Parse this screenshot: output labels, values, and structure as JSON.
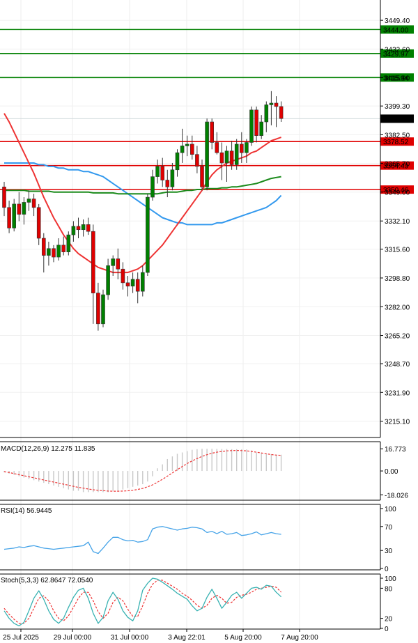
{
  "chart_data": [
    {
      "type": "candlestick",
      "panel": "price",
      "y_ticks": [
        "3449.40",
        "3432.60",
        "3415.90",
        "3399.30",
        "3382.50",
        "3365.70",
        "3349.00",
        "3332.10",
        "3315.60",
        "3298.80",
        "3282.00",
        "3265.20",
        "3248.70",
        "3231.90",
        "3215.10"
      ],
      "ylim": [
        3208,
        3458
      ],
      "x_ticks": [
        "25 Jul 2025",
        "29 Jul 00:00",
        "31 Jul 00:00",
        "3 Aug 22:01",
        "5 Aug 20:00",
        "7 Aug 20:00"
      ],
      "last_price": "3391.88",
      "horizontal_levels": [
        {
          "label": "3444.00",
          "value": 3444.0,
          "color": "#008000"
        },
        {
          "label": "3429.97",
          "value": 3429.97,
          "color": "#008000"
        },
        {
          "label": "3415.94",
          "value": 3415.94,
          "color": "#008000"
        },
        {
          "label": "3378.52",
          "value": 3378.52,
          "color": "#e00000"
        },
        {
          "label": "3364.49",
          "value": 3364.49,
          "color": "#e00000"
        },
        {
          "label": "3350.46",
          "value": 3350.46,
          "color": "#e00000"
        }
      ],
      "candles": [
        [
          3352,
          3355,
          3335,
          3340
        ],
        [
          3340,
          3344,
          3325,
          3328
        ],
        [
          3328,
          3345,
          3326,
          3342
        ],
        [
          3342,
          3349,
          3332,
          3336
        ],
        [
          3336,
          3346,
          3330,
          3343
        ],
        [
          3343,
          3350,
          3338,
          3345
        ],
        [
          3345,
          3348,
          3335,
          3340
        ],
        [
          3340,
          3342,
          3318,
          3322
        ],
        [
          3322,
          3325,
          3302,
          3312
        ],
        [
          3312,
          3320,
          3306,
          3316
        ],
        [
          3316,
          3318,
          3308,
          3311
        ],
        [
          3311,
          3322,
          3309,
          3318
        ],
        [
          3318,
          3323,
          3312,
          3314
        ],
        [
          3314,
          3326,
          3312,
          3324
        ],
        [
          3324,
          3332,
          3320,
          3329
        ],
        [
          3329,
          3334,
          3322,
          3327
        ],
        [
          3327,
          3333,
          3323,
          3330
        ],
        [
          3330,
          3334,
          3324,
          3326
        ],
        [
          3326,
          3330,
          3272,
          3290
        ],
        [
          3290,
          3296,
          3268,
          3272
        ],
        [
          3272,
          3292,
          3270,
          3289
        ],
        [
          3289,
          3310,
          3286,
          3306
        ],
        [
          3306,
          3312,
          3300,
          3310
        ],
        [
          3310,
          3316,
          3298,
          3304
        ],
        [
          3304,
          3308,
          3292,
          3296
        ],
        [
          3296,
          3300,
          3288,
          3294
        ],
        [
          3294,
          3302,
          3290,
          3298
        ],
        [
          3298,
          3302,
          3284,
          3291
        ],
        [
          3291,
          3306,
          3288,
          3302
        ],
        [
          3302,
          3348,
          3300,
          3346
        ],
        [
          3346,
          3362,
          3344,
          3358
        ],
        [
          3358,
          3368,
          3354,
          3364
        ],
        [
          3364,
          3369,
          3352,
          3356
        ],
        [
          3356,
          3362,
          3346,
          3352
        ],
        [
          3352,
          3366,
          3350,
          3362
        ],
        [
          3362,
          3374,
          3358,
          3372
        ],
        [
          3372,
          3386,
          3366,
          3376
        ],
        [
          3376,
          3382,
          3370,
          3377
        ],
        [
          3377,
          3382,
          3368,
          3371
        ],
        [
          3371,
          3376,
          3360,
          3364
        ],
        [
          3364,
          3368,
          3350,
          3352
        ],
        [
          3352,
          3392,
          3350,
          3390
        ],
        [
          3390,
          3392,
          3374,
          3378
        ],
        [
          3378,
          3384,
          3371,
          3372
        ],
        [
          3372,
          3378,
          3356,
          3366
        ],
        [
          3366,
          3376,
          3355,
          3373
        ],
        [
          3373,
          3379,
          3362,
          3365
        ],
        [
          3365,
          3380,
          3362,
          3377
        ],
        [
          3377,
          3384,
          3366,
          3372
        ],
        [
          3372,
          3380,
          3366,
          3378
        ],
        [
          3378,
          3399,
          3376,
          3397
        ],
        [
          3397,
          3399,
          3378,
          3382
        ],
        [
          3382,
          3394,
          3380,
          3390
        ],
        [
          3390,
          3402,
          3384,
          3400
        ],
        [
          3400,
          3408,
          3388,
          3401
        ],
        [
          3401,
          3405,
          3387,
          3399
        ],
        [
          3399,
          3402,
          3390,
          3392
        ]
      ],
      "ma_red": [
        3395,
        3390,
        3384,
        3378,
        3372,
        3366,
        3360,
        3353,
        3346,
        3340,
        3334,
        3329,
        3324,
        3320,
        3316,
        3313,
        3311,
        3309,
        3307,
        3305,
        3304,
        3303,
        3302,
        3302,
        3302,
        3302,
        3303,
        3304,
        3306,
        3309,
        3312,
        3315,
        3318,
        3322,
        3326,
        3330,
        3334,
        3338,
        3342,
        3346,
        3350,
        3355,
        3359,
        3362,
        3364,
        3366,
        3367,
        3368,
        3369,
        3370,
        3372,
        3373,
        3375,
        3377,
        3379,
        3380,
        3381
      ],
      "ma_blue": [
        3366,
        3366,
        3366,
        3366,
        3366,
        3366,
        3366,
        3365,
        3365,
        3364,
        3364,
        3363,
        3363,
        3362,
        3362,
        3362,
        3361,
        3361,
        3360,
        3359,
        3358,
        3356,
        3354,
        3352,
        3350,
        3348,
        3346,
        3344,
        3342,
        3340,
        3338,
        3336,
        3334,
        3333,
        3332,
        3331,
        3331,
        3330,
        3330,
        3330,
        3330,
        3330,
        3330,
        3331,
        3331,
        3332,
        3333,
        3334,
        3335,
        3336,
        3337,
        3338,
        3339,
        3340,
        3342,
        3344,
        3347
      ],
      "ma_green": [
        3350,
        3350,
        3350,
        3350,
        3350,
        3349.5,
        3349.5,
        3349.5,
        3349.5,
        3349.5,
        3349,
        3349,
        3349,
        3349,
        3349,
        3349,
        3349,
        3349,
        3348.5,
        3348.5,
        3348.5,
        3348.5,
        3348.5,
        3348,
        3348,
        3348,
        3348,
        3348,
        3348,
        3348,
        3348,
        3348,
        3348.5,
        3349,
        3349,
        3349,
        3349.5,
        3350,
        3350,
        3350.5,
        3350.5,
        3351,
        3351,
        3351,
        3351.5,
        3351.5,
        3352,
        3352,
        3352.5,
        3353,
        3353.5,
        3354,
        3355,
        3356,
        3357,
        3357.5,
        3358
      ]
    },
    {
      "type": "bar+line",
      "panel": "macd",
      "title": "MACD(12,26,9) 12.275 11.835",
      "y_ticks": [
        "16.773",
        "0.00",
        "-18.026"
      ],
      "ylim": [
        -20,
        19
      ],
      "histogram": [
        -1,
        -2,
        -3,
        -4,
        -5,
        -6,
        -7,
        -8,
        -9,
        -10,
        -11,
        -12,
        -13,
        -14,
        -15,
        -15,
        -16,
        -16,
        -16,
        -16,
        -16,
        -16,
        -15,
        -15,
        -14,
        -13,
        -12,
        -11,
        -10,
        -8,
        -4,
        2,
        5,
        9,
        11,
        13,
        14,
        15,
        16,
        16.5,
        16.8,
        16.8,
        16.8,
        16.7,
        16.6,
        16.6,
        16.5,
        16.5,
        16.4,
        16.3,
        15.5,
        14,
        13.5,
        13,
        12.6,
        12.4,
        12.3
      ],
      "signal": [
        -0.5,
        -1.2,
        -2,
        -2.8,
        -3.6,
        -4.4,
        -5.2,
        -6,
        -6.8,
        -7.6,
        -8.4,
        -9.2,
        -10,
        -10.8,
        -11.6,
        -12.4,
        -13,
        -13.6,
        -14.2,
        -14.6,
        -14.9,
        -15.2,
        -15.3,
        -15.3,
        -15.2,
        -15,
        -14.6,
        -14,
        -13.2,
        -12,
        -10.5,
        -8.5,
        -6.3,
        -3.9,
        -1.5,
        1,
        3.4,
        5.6,
        7.6,
        9.4,
        11,
        12.3,
        13.4,
        14.2,
        14.8,
        15.2,
        15.4,
        15.5,
        15.4,
        15.2,
        14.8,
        14.2,
        13.6,
        13,
        12.4,
        12,
        11.835
      ]
    },
    {
      "type": "line",
      "panel": "rsi",
      "title": "RSI(14) 56.9445",
      "y_ticks": [
        "100",
        "70",
        "30",
        "0"
      ],
      "ylim": [
        0,
        100
      ],
      "values": [
        32,
        33,
        34,
        36,
        35,
        37,
        38,
        36,
        34,
        33,
        32,
        33,
        34,
        35,
        36,
        37,
        38,
        44,
        28,
        25,
        34,
        44,
        52,
        52,
        48,
        46,
        47,
        44,
        45,
        48,
        66,
        69,
        70,
        68,
        66,
        64,
        66,
        67,
        69,
        68,
        66,
        60,
        62,
        58,
        62,
        57,
        58,
        60,
        55,
        56,
        58,
        61,
        56,
        58,
        60,
        58,
        56.9445
      ]
    },
    {
      "type": "line",
      "panel": "stoch",
      "title": "Stoch(5,3,3) 62.8647 72.0540",
      "y_ticks": [
        "100",
        "80",
        "20",
        "0"
      ],
      "ylim": [
        0,
        100
      ],
      "k": [
        35,
        20,
        10,
        5,
        12,
        35,
        60,
        75,
        58,
        35,
        18,
        10,
        20,
        42,
        62,
        76,
        80,
        60,
        30,
        10,
        22,
        55,
        72,
        58,
        35,
        22,
        15,
        35,
        76,
        90,
        100,
        98,
        92,
        85,
        78,
        70,
        64,
        58,
        45,
        35,
        40,
        62,
        78,
        60,
        40,
        52,
        66,
        72,
        60,
        70,
        80,
        82,
        78,
        86,
        84,
        72,
        62.8647
      ],
      "d": [
        40,
        28,
        18,
        10,
        10,
        20,
        40,
        60,
        65,
        55,
        35,
        20,
        15,
        25,
        42,
        60,
        72,
        72,
        55,
        33,
        20,
        30,
        52,
        62,
        55,
        38,
        24,
        24,
        45,
        70,
        88,
        96,
        96,
        90,
        84,
        78,
        70,
        64,
        56,
        46,
        40,
        46,
        60,
        66,
        60,
        50,
        52,
        62,
        66,
        68,
        72,
        78,
        80,
        82,
        84,
        82,
        72.054
      ]
    }
  ],
  "colors": {
    "bull": "#008000",
    "bear": "#e00000",
    "ma_red": "#ee3333",
    "ma_blue": "#3399ee",
    "ma_green": "#1a8a1a",
    "signal": "#ee3333",
    "hist": "#c8c8c8",
    "rsi": "#45a3e8",
    "stoch_k": "#38b2b2",
    "stoch_d": "#ee3333"
  }
}
